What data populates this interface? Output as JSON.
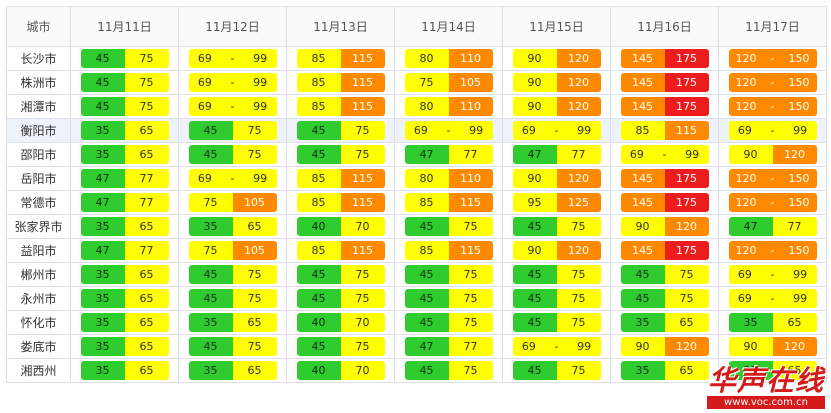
{
  "header": {
    "city_label": "城市",
    "dates": [
      "11月11日",
      "11月12日",
      "11月13日",
      "11月14日",
      "11月15日",
      "11月16日",
      "11月17日"
    ]
  },
  "color_map": {
    "g": "#2ecc2e",
    "y": "#ffff00",
    "o": "#ff8a00",
    "r": "#ee1d1d"
  },
  "rows": [
    {
      "city": "长沙市",
      "forecast": [
        [
          "45",
          "75",
          "g",
          "y"
        ],
        [
          "69",
          "99",
          "y",
          "y"
        ],
        [
          "85",
          "115",
          "y",
          "o"
        ],
        [
          "80",
          "110",
          "y",
          "o"
        ],
        [
          "90",
          "120",
          "y",
          "o"
        ],
        [
          "145",
          "175",
          "o",
          "r"
        ],
        [
          "120",
          "150",
          "o",
          "o"
        ]
      ]
    },
    {
      "city": "株洲市",
      "forecast": [
        [
          "45",
          "75",
          "g",
          "y"
        ],
        [
          "69",
          "99",
          "y",
          "y"
        ],
        [
          "85",
          "115",
          "y",
          "o"
        ],
        [
          "75",
          "105",
          "y",
          "o"
        ],
        [
          "90",
          "120",
          "y",
          "o"
        ],
        [
          "145",
          "175",
          "o",
          "r"
        ],
        [
          "120",
          "150",
          "o",
          "o"
        ]
      ]
    },
    {
      "city": "湘潭市",
      "forecast": [
        [
          "45",
          "75",
          "g",
          "y"
        ],
        [
          "69",
          "99",
          "y",
          "y"
        ],
        [
          "85",
          "115",
          "y",
          "o"
        ],
        [
          "80",
          "110",
          "y",
          "o"
        ],
        [
          "90",
          "120",
          "y",
          "o"
        ],
        [
          "145",
          "175",
          "o",
          "r"
        ],
        [
          "120",
          "150",
          "o",
          "o"
        ]
      ]
    },
    {
      "city": "衡阳市",
      "forecast": [
        [
          "35",
          "65",
          "g",
          "y"
        ],
        [
          "45",
          "75",
          "g",
          "y"
        ],
        [
          "45",
          "75",
          "g",
          "y"
        ],
        [
          "69",
          "99",
          "y",
          "y"
        ],
        [
          "69",
          "99",
          "y",
          "y"
        ],
        [
          "85",
          "115",
          "y",
          "o"
        ],
        [
          "69",
          "99",
          "y",
          "y"
        ]
      ]
    },
    {
      "city": "邵阳市",
      "forecast": [
        [
          "35",
          "65",
          "g",
          "y"
        ],
        [
          "45",
          "75",
          "g",
          "y"
        ],
        [
          "45",
          "75",
          "g",
          "y"
        ],
        [
          "47",
          "77",
          "g",
          "y"
        ],
        [
          "47",
          "77",
          "g",
          "y"
        ],
        [
          "69",
          "99",
          "y",
          "y"
        ],
        [
          "90",
          "120",
          "y",
          "o"
        ]
      ]
    },
    {
      "city": "岳阳市",
      "forecast": [
        [
          "47",
          "77",
          "g",
          "y"
        ],
        [
          "69",
          "99",
          "y",
          "y"
        ],
        [
          "85",
          "115",
          "y",
          "o"
        ],
        [
          "80",
          "110",
          "y",
          "o"
        ],
        [
          "90",
          "120",
          "y",
          "o"
        ],
        [
          "145",
          "175",
          "o",
          "r"
        ],
        [
          "120",
          "150",
          "o",
          "o"
        ]
      ]
    },
    {
      "city": "常德市",
      "forecast": [
        [
          "47",
          "77",
          "g",
          "y"
        ],
        [
          "75",
          "105",
          "y",
          "o"
        ],
        [
          "85",
          "115",
          "y",
          "o"
        ],
        [
          "85",
          "115",
          "y",
          "o"
        ],
        [
          "95",
          "125",
          "y",
          "o"
        ],
        [
          "145",
          "175",
          "o",
          "r"
        ],
        [
          "120",
          "150",
          "o",
          "o"
        ]
      ]
    },
    {
      "city": "张家界市",
      "forecast": [
        [
          "35",
          "65",
          "g",
          "y"
        ],
        [
          "35",
          "65",
          "g",
          "y"
        ],
        [
          "40",
          "70",
          "g",
          "y"
        ],
        [
          "45",
          "75",
          "g",
          "y"
        ],
        [
          "45",
          "75",
          "g",
          "y"
        ],
        [
          "90",
          "120",
          "y",
          "o"
        ],
        [
          "47",
          "77",
          "g",
          "y"
        ]
      ]
    },
    {
      "city": "益阳市",
      "forecast": [
        [
          "47",
          "77",
          "g",
          "y"
        ],
        [
          "75",
          "105",
          "y",
          "o"
        ],
        [
          "85",
          "115",
          "y",
          "o"
        ],
        [
          "85",
          "115",
          "y",
          "o"
        ],
        [
          "90",
          "120",
          "y",
          "o"
        ],
        [
          "145",
          "175",
          "o",
          "r"
        ],
        [
          "120",
          "150",
          "o",
          "o"
        ]
      ]
    },
    {
      "city": "郴州市",
      "forecast": [
        [
          "35",
          "65",
          "g",
          "y"
        ],
        [
          "45",
          "75",
          "g",
          "y"
        ],
        [
          "45",
          "75",
          "g",
          "y"
        ],
        [
          "45",
          "75",
          "g",
          "y"
        ],
        [
          "45",
          "75",
          "g",
          "y"
        ],
        [
          "45",
          "75",
          "g",
          "y"
        ],
        [
          "69",
          "99",
          "y",
          "y"
        ]
      ]
    },
    {
      "city": "永州市",
      "forecast": [
        [
          "35",
          "65",
          "g",
          "y"
        ],
        [
          "45",
          "75",
          "g",
          "y"
        ],
        [
          "45",
          "75",
          "g",
          "y"
        ],
        [
          "45",
          "75",
          "g",
          "y"
        ],
        [
          "45",
          "75",
          "g",
          "y"
        ],
        [
          "45",
          "75",
          "g",
          "y"
        ],
        [
          "69",
          "99",
          "y",
          "y"
        ]
      ]
    },
    {
      "city": "怀化市",
      "forecast": [
        [
          "35",
          "65",
          "g",
          "y"
        ],
        [
          "35",
          "65",
          "g",
          "y"
        ],
        [
          "40",
          "70",
          "g",
          "y"
        ],
        [
          "45",
          "75",
          "g",
          "y"
        ],
        [
          "45",
          "75",
          "g",
          "y"
        ],
        [
          "35",
          "65",
          "g",
          "y"
        ],
        [
          "35",
          "65",
          "g",
          "y"
        ]
      ]
    },
    {
      "city": "娄底市",
      "forecast": [
        [
          "35",
          "65",
          "g",
          "y"
        ],
        [
          "45",
          "75",
          "g",
          "y"
        ],
        [
          "45",
          "75",
          "g",
          "y"
        ],
        [
          "47",
          "77",
          "g",
          "y"
        ],
        [
          "69",
          "99",
          "y",
          "y"
        ],
        [
          "90",
          "120",
          "y",
          "o"
        ],
        [
          "90",
          "120",
          "y",
          "o"
        ]
      ]
    },
    {
      "city": "湘西州",
      "forecast": [
        [
          "35",
          "65",
          "g",
          "y"
        ],
        [
          "35",
          "65",
          "g",
          "y"
        ],
        [
          "40",
          "70",
          "g",
          "y"
        ],
        [
          "45",
          "75",
          "g",
          "y"
        ],
        [
          "45",
          "75",
          "g",
          "y"
        ],
        [
          "35",
          "65",
          "g",
          "y"
        ],
        [
          "35",
          "65",
          "g",
          "y"
        ]
      ]
    }
  ],
  "highlight_row": 3,
  "watermark": {
    "logo_text": "华声在线",
    "url": "www.voc.com.cn"
  }
}
